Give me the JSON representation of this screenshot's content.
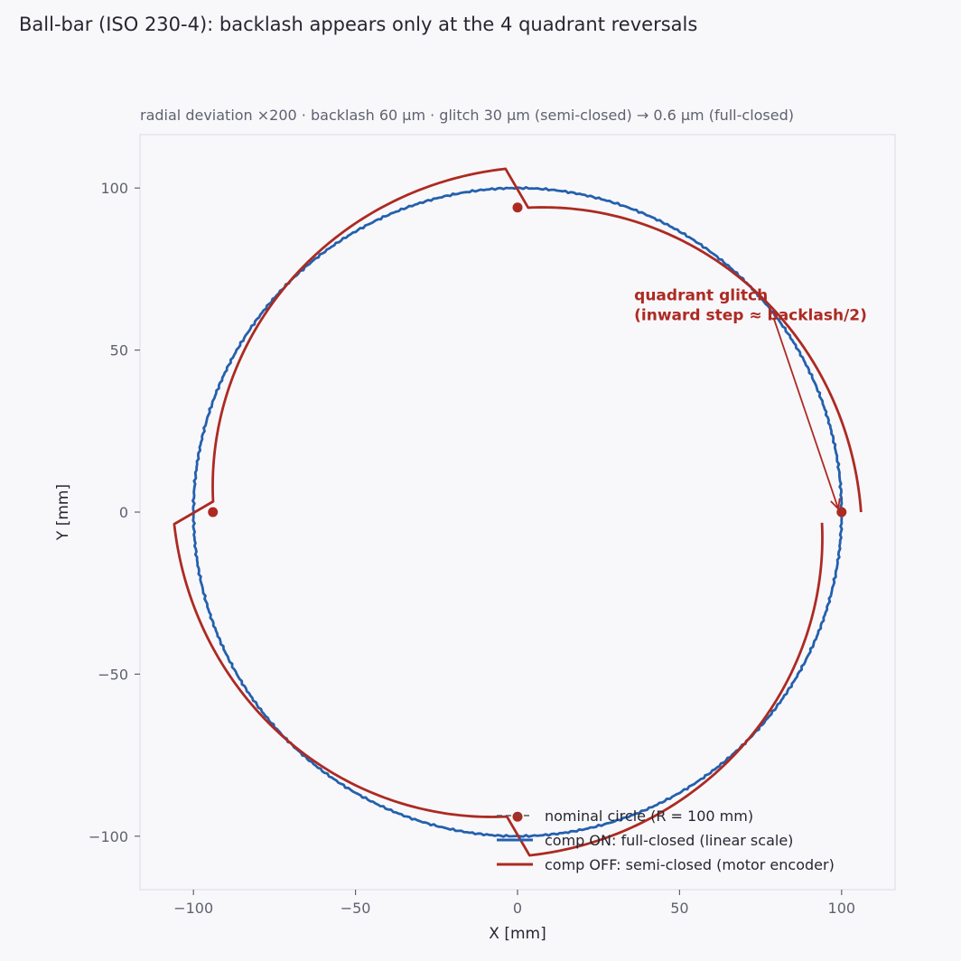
{
  "chart_data": {
    "type": "line",
    "title": "Ball-bar (ISO 230-4): backlash appears only at the 4 quadrant reversals",
    "subtitle": "radial deviation ×200   ·   backlash 60 µm   ·   glitch 30 µm (semi-closed)  →  0.6 µm (full-closed)",
    "xlabel": "X  [mm]",
    "ylabel": "Y  [mm]",
    "xlim": [
      -116.5,
      116.5
    ],
    "ylim": [
      -116.5,
      116.5
    ],
    "xticks": [
      -100,
      -50,
      0,
      50,
      100
    ],
    "yticks": [
      -100,
      -50,
      0,
      50,
      100
    ],
    "xtick_labels": [
      "−100",
      "−50",
      "0",
      "50",
      "100"
    ],
    "ytick_labels": [
      "−100",
      "−50",
      "0",
      "50",
      "100"
    ],
    "grid": false,
    "legend_position": "bottom-right",
    "series": [
      {
        "name": "nominal circle (R = 100 mm)",
        "style": "dashed",
        "color": "#555555",
        "radius": 100
      },
      {
        "name": "comp ON: full-closed (linear scale)",
        "style": "solid",
        "color": "#2560ad",
        "radius": 100,
        "ripple_amplitude": 0.3
      },
      {
        "name": "comp OFF: semi-closed (motor encoder)",
        "style": "solid",
        "color": "#ad2a22",
        "segments": [
          {
            "start_deg": 0,
            "end_deg": 88,
            "start_radius": 106,
            "end_radius": 94
          },
          {
            "start_deg": 92,
            "end_deg": 178,
            "start_radius": 106,
            "end_radius": 94
          },
          {
            "start_deg": 182,
            "end_deg": 268,
            "start_radius": 106,
            "end_radius": 94
          },
          {
            "start_deg": 272,
            "end_deg": 358,
            "start_radius": 106,
            "end_radius": 94
          }
        ]
      }
    ],
    "reversal_points": [
      {
        "x": 100,
        "y": 0
      },
      {
        "x": 0,
        "y": 94
      },
      {
        "x": -94,
        "y": 0
      },
      {
        "x": 0,
        "y": -94
      }
    ],
    "annotation": {
      "lines": [
        "quadrant glitch",
        "(inward step ≈ backlash/2)"
      ],
      "text_x": 36,
      "text_y": 67,
      "arrow_from": [
        79,
        60
      ],
      "arrow_to": [
        99,
        1
      ]
    },
    "colors": {
      "background": "#f8f8fb",
      "frame": "#e0e2e8",
      "ticks": "#5f6170",
      "comp_on": "#2560ad",
      "comp_off": "#ad2a22",
      "nominal": "#555555"
    }
  }
}
